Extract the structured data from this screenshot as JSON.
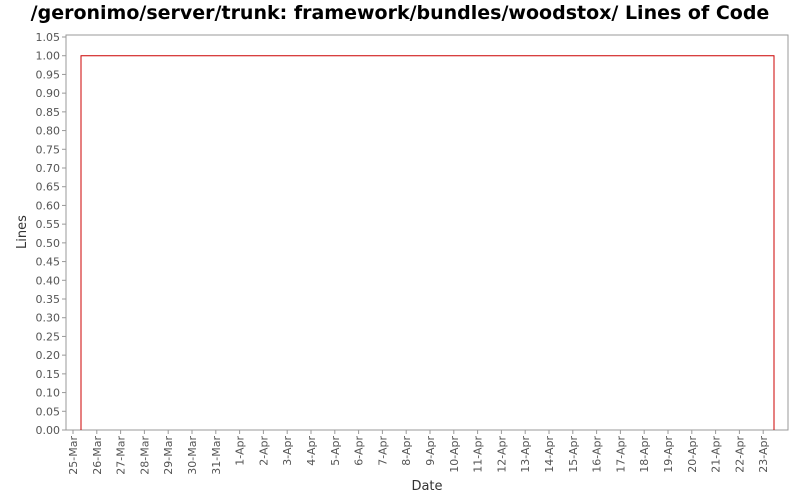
{
  "chart_data": {
    "type": "line",
    "title": "/geronimo/server/trunk: framework/bundles/woodstox/ Lines of Code",
    "xlabel": "Date",
    "ylabel": "Lines",
    "ylim": [
      0,
      1.05
    ],
    "yticks": [
      "0.00",
      "0.05",
      "0.10",
      "0.15",
      "0.20",
      "0.25",
      "0.30",
      "0.35",
      "0.40",
      "0.45",
      "0.50",
      "0.55",
      "0.60",
      "0.65",
      "0.70",
      "0.75",
      "0.80",
      "0.85",
      "0.90",
      "0.95",
      "1.00",
      "1.05"
    ],
    "categories": [
      "25-Mar",
      "26-Mar",
      "27-Mar",
      "28-Mar",
      "29-Mar",
      "30-Mar",
      "31-Mar",
      "1-Apr",
      "2-Apr",
      "3-Apr",
      "4-Apr",
      "5-Apr",
      "6-Apr",
      "7-Apr",
      "8-Apr",
      "9-Apr",
      "10-Apr",
      "11-Apr",
      "12-Apr",
      "13-Apr",
      "14-Apr",
      "15-Apr",
      "16-Apr",
      "17-Apr",
      "18-Apr",
      "19-Apr",
      "20-Apr",
      "21-Apr",
      "22-Apr",
      "23-Apr"
    ],
    "grid": false,
    "series": [
      {
        "color": "#cc0000",
        "points": [
          {
            "x": "25-Mar",
            "y": 0
          },
          {
            "x": "25-Mar",
            "y": 1
          },
          {
            "x": "24-Apr",
            "y": 1
          },
          {
            "x": "24-Apr",
            "y": 0
          }
        ]
      }
    ]
  }
}
